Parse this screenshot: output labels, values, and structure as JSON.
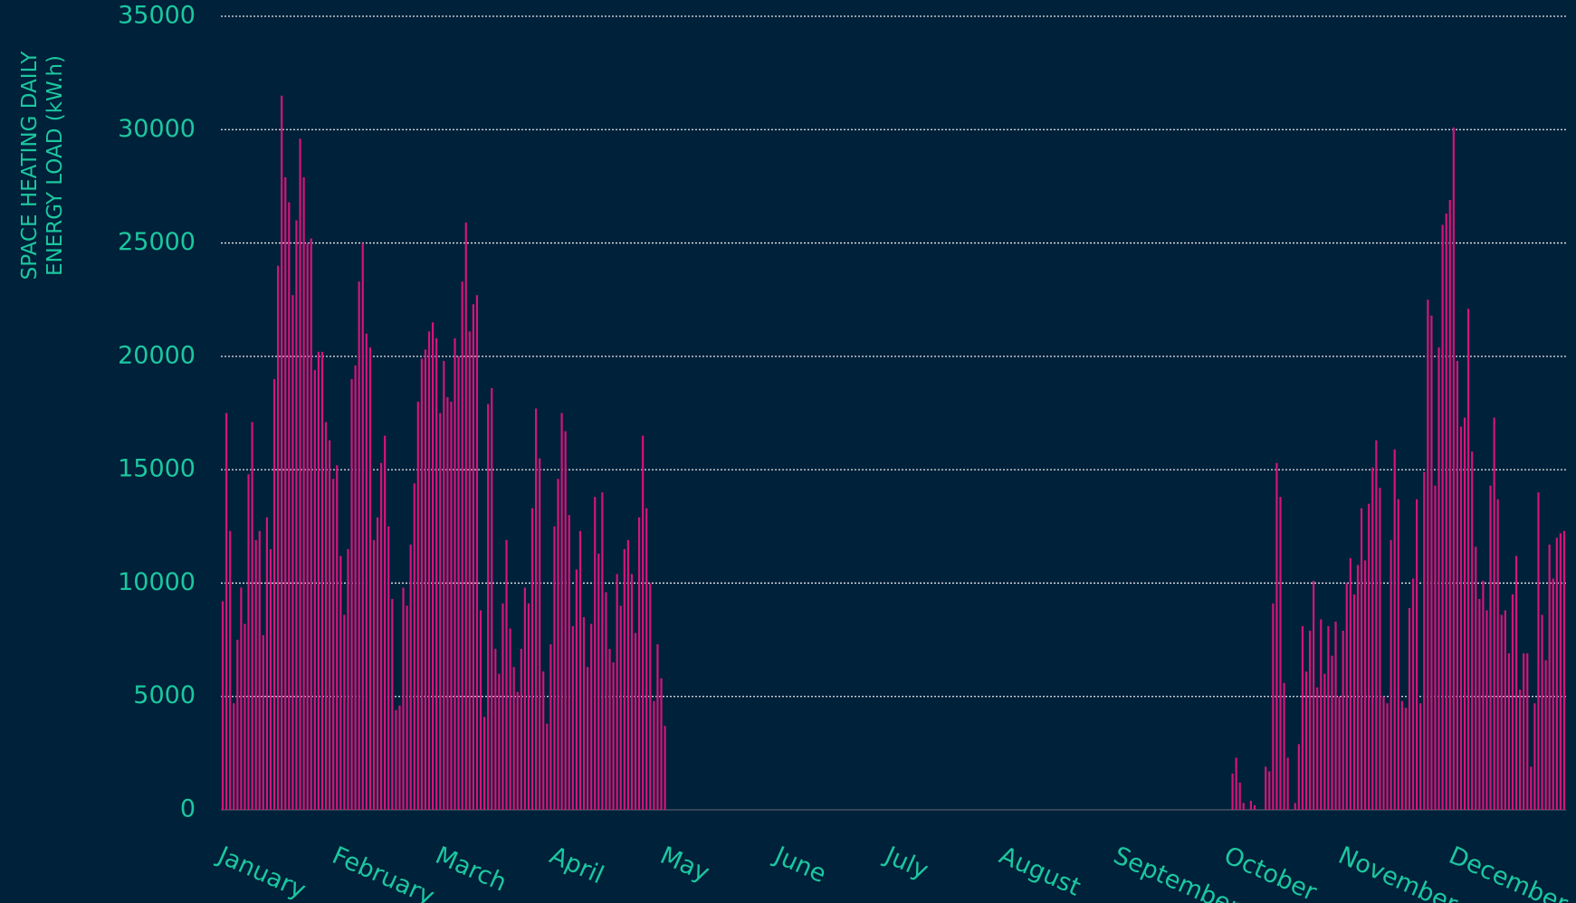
{
  "chart_data": {
    "type": "bar",
    "y_label": "SPACE HEATING DAILY ENERGY LOAD (kW.h)",
    "color": "#d4147c",
    "ylim": [
      0,
      35000
    ],
    "yticks": [
      0,
      5000,
      10000,
      15000,
      20000,
      25000,
      30000,
      35000
    ],
    "grid": true,
    "categories": [
      "January",
      null,
      null,
      null,
      null,
      null,
      null,
      null,
      null,
      null,
      null,
      null,
      null,
      null,
      null,
      null,
      null,
      null,
      null,
      null,
      null,
      null,
      null,
      null,
      null,
      null,
      null,
      null,
      null,
      null,
      null,
      "February",
      null,
      null,
      null,
      null,
      null,
      null,
      null,
      null,
      null,
      null,
      null,
      null,
      null,
      null,
      null,
      null,
      null,
      null,
      null,
      null,
      null,
      null,
      null,
      null,
      null,
      null,
      null,
      "March",
      null,
      null,
      null,
      null,
      null,
      null,
      null,
      null,
      null,
      null,
      null,
      null,
      null,
      null,
      null,
      null,
      null,
      null,
      null,
      null,
      null,
      null,
      null,
      null,
      null,
      null,
      null,
      null,
      null,
      null,
      "April",
      null,
      null,
      null,
      null,
      null,
      null,
      null,
      null,
      null,
      null,
      null,
      null,
      null,
      null,
      null,
      null,
      null,
      null,
      null,
      null,
      null,
      null,
      null,
      null,
      null,
      null,
      null,
      null,
      null,
      "May",
      null,
      null,
      null,
      null,
      null,
      null,
      null,
      null,
      null,
      null,
      null,
      null,
      null,
      null,
      null,
      null,
      null,
      null,
      null,
      null,
      null,
      null,
      null,
      null,
      null,
      null,
      null,
      null,
      null,
      null,
      "June",
      null,
      null,
      null,
      null,
      null,
      null,
      null,
      null,
      null,
      null,
      null,
      null,
      null,
      null,
      null,
      null,
      null,
      null,
      null,
      null,
      null,
      null,
      null,
      null,
      null,
      null,
      null,
      null,
      null,
      "July",
      null,
      null,
      null,
      null,
      null,
      null,
      null,
      null,
      null,
      null,
      null,
      null,
      null,
      null,
      null,
      null,
      null,
      null,
      null,
      null,
      null,
      null,
      null,
      null,
      null,
      null,
      null,
      null,
      null,
      null,
      "August",
      null,
      null,
      null,
      null,
      null,
      null,
      null,
      null,
      null,
      null,
      null,
      null,
      null,
      null,
      null,
      null,
      null,
      null,
      null,
      null,
      null,
      null,
      null,
      null,
      null,
      null,
      null,
      null,
      null,
      null,
      "September",
      null,
      null,
      null,
      null,
      null,
      null,
      null,
      null,
      null,
      null,
      null,
      null,
      null,
      null,
      null,
      null,
      null,
      null,
      null,
      null,
      null,
      null,
      null,
      null,
      null,
      null,
      null,
      null,
      null,
      "October",
      null,
      null,
      null,
      null,
      null,
      null,
      null,
      null,
      null,
      null,
      null,
      null,
      null,
      null,
      null,
      null,
      null,
      null,
      null,
      null,
      null,
      null,
      null,
      null,
      null,
      null,
      null,
      null,
      null,
      null,
      "November",
      null,
      null,
      null,
      null,
      null,
      null,
      null,
      null,
      null,
      null,
      null,
      null,
      null,
      null,
      null,
      null,
      null,
      null,
      null,
      null,
      null,
      null,
      null,
      null,
      null,
      null,
      null,
      null,
      null,
      "December",
      null,
      null,
      null,
      null,
      null,
      null,
      null,
      null,
      null,
      null,
      null,
      null,
      null,
      null,
      null,
      null,
      null,
      null,
      null,
      null,
      null,
      null,
      null,
      null,
      null,
      null,
      null,
      null,
      null,
      null
    ],
    "values": [
      9200,
      17500,
      12300,
      4700,
      7500,
      9800,
      8200,
      14800,
      17100,
      11900,
      12300,
      7700,
      12900,
      11500,
      19000,
      24000,
      31500,
      27900,
      26800,
      22700,
      26000,
      29600,
      27900,
      25000,
      25200,
      19400,
      20200,
      20200,
      17100,
      16300,
      14600,
      15200,
      11200,
      8600,
      11500,
      19000,
      19600,
      23300,
      25000,
      21000,
      20400,
      11900,
      12900,
      15300,
      16500,
      12500,
      9300,
      4400,
      4600,
      9800,
      9000,
      11700,
      14400,
      18000,
      19900,
      20300,
      21100,
      21500,
      20800,
      17500,
      19800,
      18200,
      18000,
      20800,
      20000,
      23300,
      25900,
      21100,
      22300,
      22700,
      8800,
      4100,
      17900,
      18600,
      7100,
      6000,
      9100,
      11900,
      8000,
      6300,
      5200,
      7100,
      9800,
      9100,
      13300,
      17700,
      15500,
      6100,
      3800,
      7300,
      12500,
      14600,
      17500,
      16700,
      13000,
      8100,
      10600,
      12300,
      8500,
      6300,
      8200,
      13800,
      11300,
      14000,
      9600,
      7100,
      6500,
      10400,
      9000,
      11500,
      11900,
      10400,
      7800,
      12900,
      16500,
      13300,
      10000,
      4800,
      7300,
      5800,
      3700,
      0,
      0,
      0,
      0,
      0,
      0,
      0,
      0,
      0,
      0,
      0,
      0,
      0,
      0,
      0,
      0,
      0,
      0,
      0,
      0,
      0,
      0,
      0,
      0,
      0,
      0,
      0,
      0,
      0,
      0,
      0,
      0,
      0,
      0,
      0,
      0,
      0,
      0,
      0,
      0,
      0,
      0,
      0,
      0,
      0,
      0,
      0,
      0,
      0,
      0,
      0,
      0,
      0,
      0,
      0,
      0,
      0,
      0,
      0,
      0,
      0,
      0,
      0,
      0,
      0,
      0,
      0,
      0,
      0,
      0,
      0,
      0,
      0,
      0,
      0,
      0,
      0,
      0,
      0,
      0,
      0,
      0,
      0,
      0,
      0,
      0,
      0,
      0,
      0,
      0,
      0,
      0,
      0,
      0,
      0,
      0,
      0,
      0,
      0,
      0,
      0,
      0,
      0,
      0,
      0,
      0,
      0,
      0,
      0,
      0,
      0,
      0,
      0,
      0,
      0,
      0,
      0,
      0,
      0,
      0,
      0,
      0,
      0,
      0,
      0,
      0,
      0,
      0,
      0,
      0,
      0,
      0,
      0,
      0,
      0,
      0,
      0,
      0,
      0,
      0,
      0,
      0,
      0,
      0,
      0,
      0,
      0,
      0,
      0,
      0,
      0,
      0,
      0,
      1600,
      2300,
      1200,
      300,
      0,
      400,
      200,
      0,
      0,
      1900,
      1700,
      9100,
      15300,
      13800,
      5600,
      2300,
      0,
      300,
      2900,
      8100,
      6100,
      7900,
      10100,
      5400,
      8400,
      6000,
      8100,
      6800,
      8300,
      5000,
      7900,
      10000,
      11100,
      9500,
      10800,
      13300,
      11000,
      13500,
      15100,
      16300,
      14200,
      5000,
      4700,
      11900,
      15900,
      13700,
      4800,
      4500,
      8900,
      10200,
      13700,
      4700,
      14900,
      22500,
      21800,
      14300,
      20400,
      25800,
      26300,
      26900,
      30100,
      19800,
      16900,
      17300,
      22100,
      15800,
      11600,
      9300,
      10100,
      8800,
      14300,
      17300,
      13700,
      8600,
      8800,
      6900,
      9500,
      11200,
      5300,
      6900,
      6900,
      1900,
      4700,
      14000,
      8600,
      6600,
      11700,
      10200,
      12000,
      12200,
      12300
    ]
  }
}
